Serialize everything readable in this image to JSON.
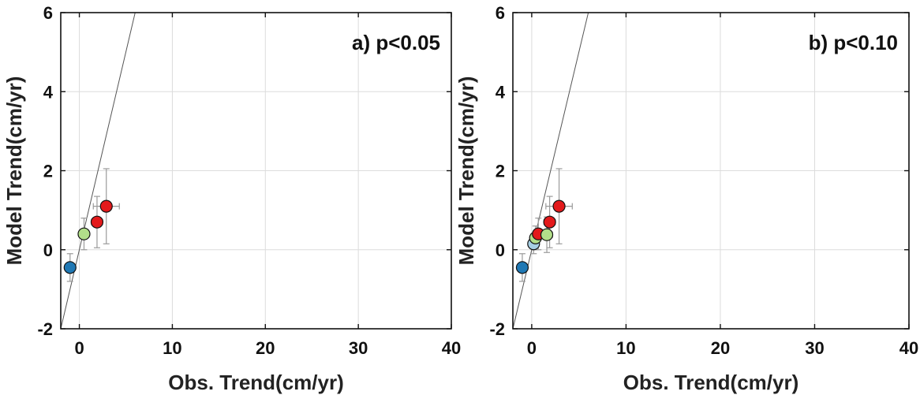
{
  "chart_data": [
    {
      "type": "scatter",
      "annotation": "a) p<0.05",
      "xlabel": "Obs. Trend(cm/yr)",
      "ylabel": "Model Trend(cm/yr)",
      "xlim": [
        -2,
        40
      ],
      "ylim": [
        -2,
        6
      ],
      "xticks": [
        0,
        10,
        20,
        30,
        40
      ],
      "yticks": [
        -2,
        0,
        2,
        4,
        6
      ],
      "grid": true,
      "one_to_one_line": true,
      "points": [
        {
          "x": -1.0,
          "y": -0.45,
          "xerr": 0.2,
          "yerr": 0.35,
          "color": "#1f78b4"
        },
        {
          "x": 0.5,
          "y": 0.4,
          "xerr": 0.5,
          "yerr": 0.4,
          "color": "#b2df8a"
        },
        {
          "x": 1.9,
          "y": 0.7,
          "xerr": 0.6,
          "yerr": 0.65,
          "color": "#e31a1c"
        },
        {
          "x": 2.9,
          "y": 1.1,
          "xerr": 1.4,
          "yerr": 0.95,
          "color": "#e31a1c"
        }
      ]
    },
    {
      "type": "scatter",
      "annotation": "b) p<0.10",
      "xlabel": "Obs. Trend(cm/yr)",
      "ylabel": "Model Trend(cm/yr)",
      "xlim": [
        -2,
        40
      ],
      "ylim": [
        -2,
        6
      ],
      "xticks": [
        0,
        10,
        20,
        30,
        40
      ],
      "yticks": [
        -2,
        0,
        2,
        4,
        6
      ],
      "grid": true,
      "one_to_one_line": true,
      "points": [
        {
          "x": -1.0,
          "y": -0.45,
          "xerr": 0.2,
          "yerr": 0.35,
          "color": "#1f78b4"
        },
        {
          "x": 0.2,
          "y": 0.15,
          "xerr": 0.3,
          "yerr": 0.25,
          "color": "#a6cee3"
        },
        {
          "x": 0.4,
          "y": 0.3,
          "xerr": 0.4,
          "yerr": 0.3,
          "color": "#b2df8a"
        },
        {
          "x": 0.7,
          "y": 0.4,
          "xerr": 0.5,
          "yerr": 0.4,
          "color": "#e31a1c"
        },
        {
          "x": 1.6,
          "y": 0.38,
          "xerr": 0.6,
          "yerr": 0.45,
          "color": "#b2df8a"
        },
        {
          "x": 1.9,
          "y": 0.7,
          "xerr": 0.6,
          "yerr": 0.65,
          "color": "#e31a1c"
        },
        {
          "x": 2.9,
          "y": 1.1,
          "xerr": 1.4,
          "yerr": 0.95,
          "color": "#e31a1c"
        }
      ]
    }
  ]
}
